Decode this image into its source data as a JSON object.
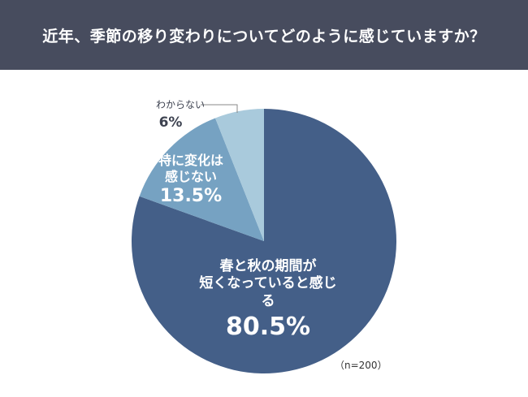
{
  "title": "近年、季節の移り変わりについてどのように感じていますか？",
  "chart_data": {
    "type": "pie",
    "start": "top",
    "direction": "clockwise",
    "slices": [
      {
        "label_lines": [
          "春と秋の期間が",
          "短くなっていると感じる"
        ],
        "value": 80.5,
        "value_label": "80.5%",
        "color": "#445f88"
      },
      {
        "label_lines": [
          "特に変化は",
          "感じない"
        ],
        "value": 13.5,
        "value_label": "13.5%",
        "color": "#76a2c2"
      },
      {
        "label_lines": [
          "わからない"
        ],
        "value": 6,
        "value_label": "6%",
        "color": "#a9cadc"
      }
    ],
    "note": "（n=200）"
  }
}
